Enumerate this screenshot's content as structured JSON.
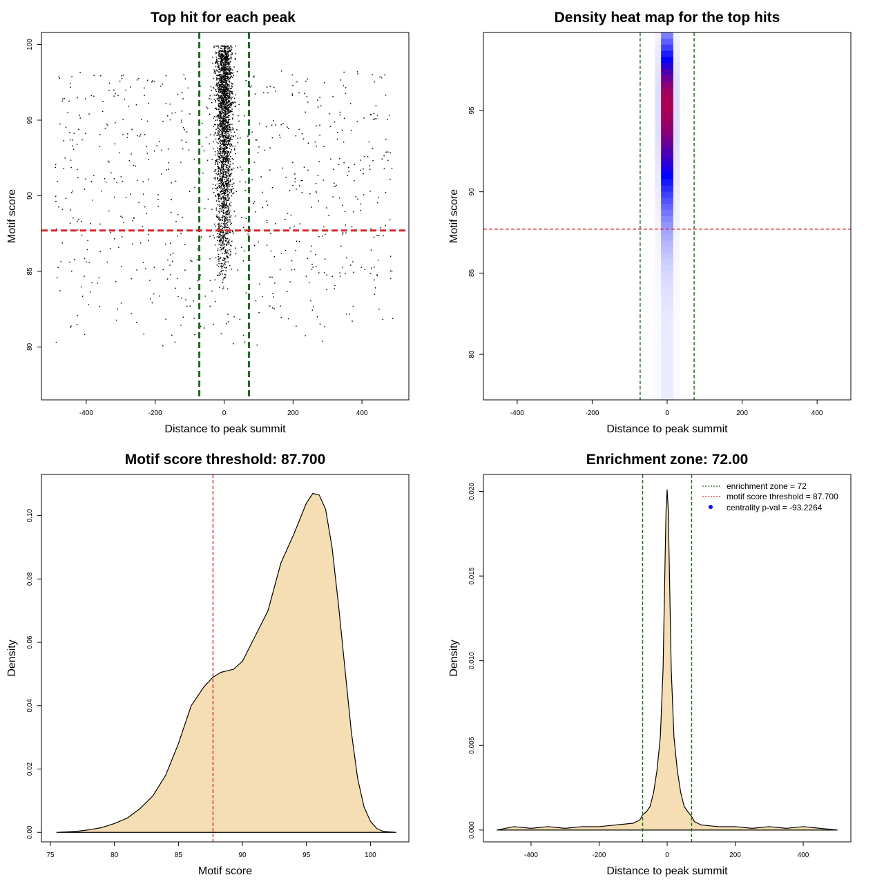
{
  "chart_data": [
    {
      "panel": "top-left",
      "type": "scatter",
      "title": "Top hit for each peak",
      "xlabel": "Distance to peak summit",
      "ylabel": "Motif score",
      "xlim": [
        -530,
        536
      ],
      "ylim": [
        76.5,
        100.8
      ],
      "xticks": [
        -400,
        -200,
        0,
        200,
        400
      ],
      "yticks": [
        80,
        85,
        90,
        95,
        100
      ],
      "point_generation": {
        "central_n": 2300,
        "central_sd": 12,
        "central_ymin": 84,
        "central_ymax": 99.8,
        "central_ymode": 95.5,
        "background_n": 700,
        "background_xrange": [
          -490,
          490
        ],
        "background_ymin": 78,
        "background_ymax": 99.5,
        "seed": 7
      },
      "vlines": [
        {
          "x": -72,
          "color": "#1a6b1a",
          "style": "dashed"
        },
        {
          "x": 72,
          "color": "#1a6b1a",
          "style": "dashed"
        }
      ],
      "hlines": [
        {
          "y": 87.7,
          "color": "#d62728",
          "style": "dashed"
        }
      ]
    },
    {
      "panel": "top-right",
      "type": "heatmap",
      "title": "Density heat map for the top hits",
      "xlabel": "Distance to peak summit",
      "ylabel": "Motif score",
      "xlim": [
        -490,
        490
      ],
      "ylim": [
        77.2,
        99.8
      ],
      "xticks": [
        -400,
        -200,
        0,
        200,
        400
      ],
      "yticks": [
        80,
        85,
        90,
        95
      ],
      "peak": {
        "x": 0,
        "y": 95.5,
        "sx": 10,
        "sy": 3.2
      },
      "vlines": [
        {
          "x": -72,
          "color": "#1a6b1a",
          "style": "dashed"
        },
        {
          "x": 72,
          "color": "#1a6b1a",
          "style": "dashed"
        }
      ],
      "hlines": [
        {
          "y": 87.7,
          "color": "#d62728",
          "style": "dashed"
        }
      ]
    },
    {
      "panel": "bottom-left",
      "type": "area",
      "title": "Motif score threshold: 87.700",
      "xlabel": "Motif score",
      "ylabel": "Density",
      "xlim": [
        74.3,
        103.0
      ],
      "ylim": [
        -0.003,
        0.113
      ],
      "xticks": [
        75,
        80,
        85,
        90,
        95,
        100
      ],
      "yticks": [
        0.0,
        0.02,
        0.04,
        0.06,
        0.08,
        0.1
      ],
      "ytick_labels": [
        "0.00",
        "0.02",
        "0.04",
        "0.06",
        "0.08",
        "0.10"
      ],
      "x": [
        75.5,
        77,
        78,
        79,
        80,
        81,
        82,
        83,
        84,
        85,
        85.5,
        86,
        87,
        87.7,
        88.3,
        88.8,
        89.3,
        90,
        91,
        92,
        93,
        94,
        95,
        95.5,
        96,
        96.5,
        97,
        97.5,
        98,
        98.5,
        99,
        99.5,
        100,
        100.5,
        101,
        102
      ],
      "y": [
        0.0,
        0.0003,
        0.0008,
        0.0015,
        0.0028,
        0.0045,
        0.0075,
        0.0115,
        0.018,
        0.028,
        0.034,
        0.04,
        0.046,
        0.049,
        0.0505,
        0.051,
        0.0515,
        0.054,
        0.062,
        0.07,
        0.085,
        0.094,
        0.104,
        0.107,
        0.1065,
        0.102,
        0.09,
        0.072,
        0.052,
        0.032,
        0.017,
        0.008,
        0.0035,
        0.0012,
        0.0003,
        0.0
      ],
      "fill": "#f5deb3",
      "vlines": [
        {
          "x": 87.7,
          "color": "#d62728",
          "style": "dashed"
        }
      ]
    },
    {
      "panel": "bottom-right",
      "type": "area",
      "title": "Enrichment zone: 72.00",
      "xlabel": "Distance to peak summit",
      "ylabel": "Density",
      "xlim": [
        -540,
        540
      ],
      "ylim": [
        -0.0007,
        0.021
      ],
      "xticks": [
        -400,
        -200,
        0,
        200,
        400
      ],
      "yticks": [
        0.0,
        0.005,
        0.01,
        0.015,
        0.02
      ],
      "ytick_labels": [
        "0.000",
        "0.005",
        "0.010",
        "0.015",
        "0.020"
      ],
      "x": [
        -500,
        -450,
        -400,
        -350,
        -300,
        -250,
        -200,
        -150,
        -100,
        -80,
        -72,
        -60,
        -50,
        -40,
        -30,
        -20,
        -12,
        -6,
        -3,
        0,
        3,
        6,
        12,
        20,
        30,
        40,
        50,
        60,
        72,
        80,
        100,
        150,
        200,
        250,
        300,
        350,
        400,
        450,
        500
      ],
      "y": [
        0.0,
        0.0002,
        0.0001,
        0.0002,
        0.0001,
        0.0002,
        0.0002,
        0.0003,
        0.0004,
        0.0006,
        0.0009,
        0.0011,
        0.0014,
        0.0022,
        0.0035,
        0.0055,
        0.0095,
        0.016,
        0.019,
        0.0201,
        0.019,
        0.016,
        0.0095,
        0.0055,
        0.0035,
        0.0022,
        0.0014,
        0.0011,
        0.0008,
        0.0005,
        0.0003,
        0.0002,
        0.0002,
        0.0001,
        0.0002,
        0.0001,
        0.0002,
        0.0001,
        0.0
      ],
      "fill": "#f5deb3",
      "vlines": [
        {
          "x": -72,
          "color": "#1a6b1a",
          "style": "dashed"
        },
        {
          "x": 72,
          "color": "#1a6b1a",
          "style": "dashed"
        }
      ],
      "legend": {
        "placement": "top-right",
        "entries": [
          {
            "label": "enrichment zone = 72",
            "color": "#1a6b1a",
            "symbol": "dotted-line"
          },
          {
            "label": "motif score threshold = 87.700",
            "color": "#d62728",
            "symbol": "dotted-line"
          },
          {
            "label": "centrality p-val = -93.2264",
            "color": "#0000ff",
            "symbol": "dot"
          }
        ]
      }
    }
  ]
}
